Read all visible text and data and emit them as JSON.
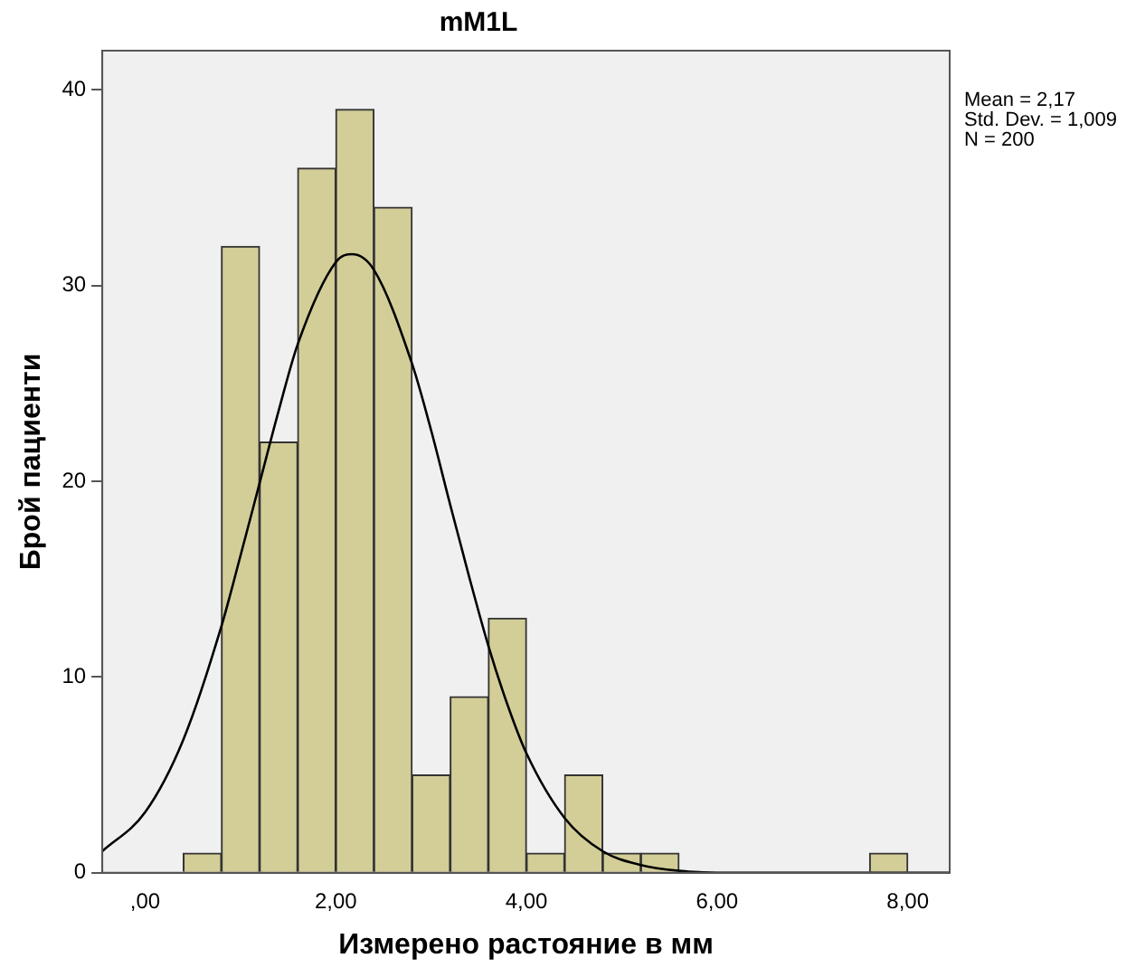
{
  "chart_data": {
    "type": "histogram",
    "title": "mM1L",
    "xlabel": "Измерено растояние в мм",
    "ylabel": "Брой пациенти",
    "bins": [
      0.4,
      0.8,
      1.2,
      1.6,
      2.0,
      2.4,
      2.8,
      3.2,
      3.6,
      4.0,
      4.4,
      4.8,
      5.2,
      5.6,
      6.0,
      6.4,
      6.8,
      7.2,
      7.6,
      8.0
    ],
    "values": [
      1,
      32,
      22,
      36,
      39,
      34,
      5,
      9,
      13,
      1,
      5,
      1,
      1,
      0,
      0,
      0,
      0,
      0,
      1
    ],
    "color": "#d3ce98",
    "series": [
      {
        "type": "line",
        "color": "#000000",
        "x": [
          -0.45,
          0,
          0.4,
          0.8,
          1.0,
          1.2,
          1.4,
          1.6,
          2.0,
          2.17,
          2.4,
          2.8,
          3.0,
          3.2,
          3.4,
          3.6,
          3.8,
          4.0,
          4.4,
          4.8,
          5.2,
          5.6,
          6.0,
          7.0,
          8.44
        ],
        "values": [
          1.1,
          3.1,
          6.8,
          12.6,
          16.2,
          19.9,
          23.6,
          27,
          31.2,
          31.6,
          30.8,
          26,
          22.6,
          18.8,
          15.1,
          11.6,
          8.6,
          6.1,
          2.8,
          1.1,
          0.4,
          0.1,
          0,
          0,
          0
        ]
      }
    ],
    "xlim": [
      -0.45,
      8.44
    ],
    "xticks": [
      {
        "value": 0,
        "label": ",00"
      },
      {
        "value": 2,
        "label": "2,00"
      },
      {
        "value": 4,
        "label": "4,00"
      },
      {
        "value": 6,
        "label": "6,00"
      },
      {
        "value": 8,
        "label": "8,00"
      }
    ],
    "ylim": [
      0,
      42
    ],
    "yticks": [
      0,
      10,
      20,
      30,
      40
    ],
    "grid": false,
    "legend": false,
    "marker": "none",
    "line_style": "solid",
    "annotations": [
      "Mean = 2,17",
      "Std. Dev. = 1,009",
      "N = 200"
    ]
  }
}
